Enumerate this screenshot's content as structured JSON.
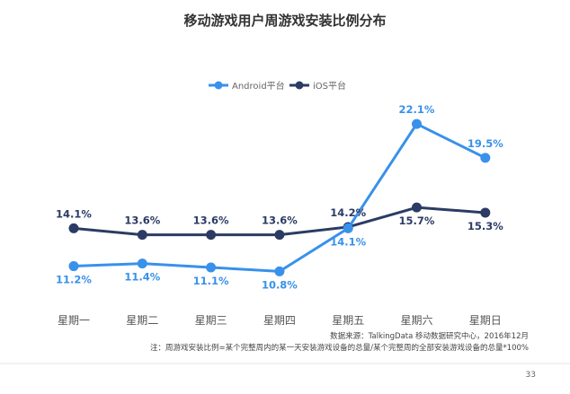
{
  "page_number": "33",
  "source_note": "数据来源：TalkingData 移动数据研究中心，2016年12月",
  "definition_note": "注：周游戏安装比例=某个完整周内的某一天安装游戏设备的总量/某个完整周的全部安装游戏设备的总量*100%",
  "colors": {
    "android": "#3891EA",
    "ios": "#2B3B64"
  },
  "chart_data": {
    "type": "line",
    "title": "移动游戏用户周游戏安装比例分布",
    "categories": [
      "星期一",
      "星期二",
      "星期三",
      "星期四",
      "星期五",
      "星期六",
      "星期日"
    ],
    "series": [
      {
        "name": "Android平台",
        "values": [
          11.2,
          11.4,
          11.1,
          10.8,
          14.1,
          22.1,
          19.5
        ],
        "labels": [
          "11.2%",
          "11.4%",
          "11.1%",
          "10.8%",
          "14.1%",
          "22.1%",
          "19.5%"
        ]
      },
      {
        "name": "iOS平台",
        "values": [
          14.1,
          13.6,
          13.6,
          13.6,
          14.2,
          15.7,
          15.3
        ],
        "labels": [
          "14.1%",
          "13.6%",
          "13.6%",
          "13.6%",
          "14.2%",
          "15.7%",
          "15.3%"
        ]
      }
    ],
    "legend_position": "top-center",
    "grid": false,
    "axes_visible": false
  }
}
